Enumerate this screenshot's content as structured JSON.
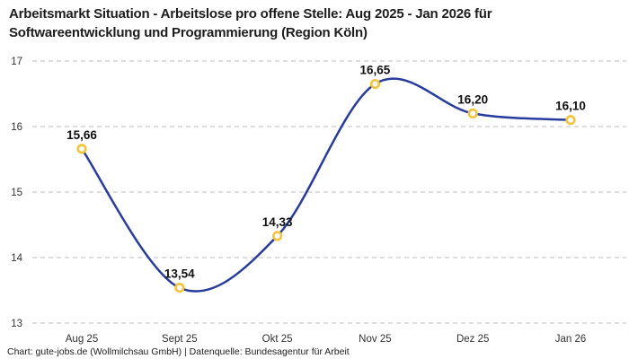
{
  "header": {
    "title_line1": "Arbeitsmarkt Situation - Arbeitslose pro offene Stelle: Aug 2025 - Jan 2026 für",
    "title_line2": "Softwareentwicklung und Programmierung (Region Köln)"
  },
  "footer": {
    "credit": "Chart: gute-jobs.de (Wollmilchsau GmbH) | Datenquelle: Bundesagentur für Arbeit"
  },
  "chart_data": {
    "type": "line",
    "title": "Arbeitsmarkt Situation - Arbeitslose pro offene Stelle: Aug 2025 - Jan 2026 für Softwareentwicklung und Programmierung (Region Köln)",
    "categories": [
      "Aug 25",
      "Sept 25",
      "Okt 25",
      "Nov 25",
      "Dez 25",
      "Jan 26"
    ],
    "values": [
      15.66,
      13.54,
      14.33,
      16.65,
      16.2,
      16.1
    ],
    "value_labels": [
      "15,66",
      "13,54",
      "14,33",
      "16,65",
      "16,20",
      "16,10"
    ],
    "xlabel": "",
    "ylabel": "",
    "ylim": [
      13,
      17
    ],
    "yticks": [
      13,
      14,
      15,
      16,
      17
    ],
    "grid": "horizontal-dashed",
    "smooth": true,
    "legend": "none",
    "colors": {
      "line": "#283c9e",
      "marker_ring": "#f5c33b",
      "marker_fill": "#ffffff",
      "gridline": "#c9c9c9",
      "tick_text": "#333333",
      "label_text": "#111111",
      "title_text": "#1d1d1d"
    }
  }
}
